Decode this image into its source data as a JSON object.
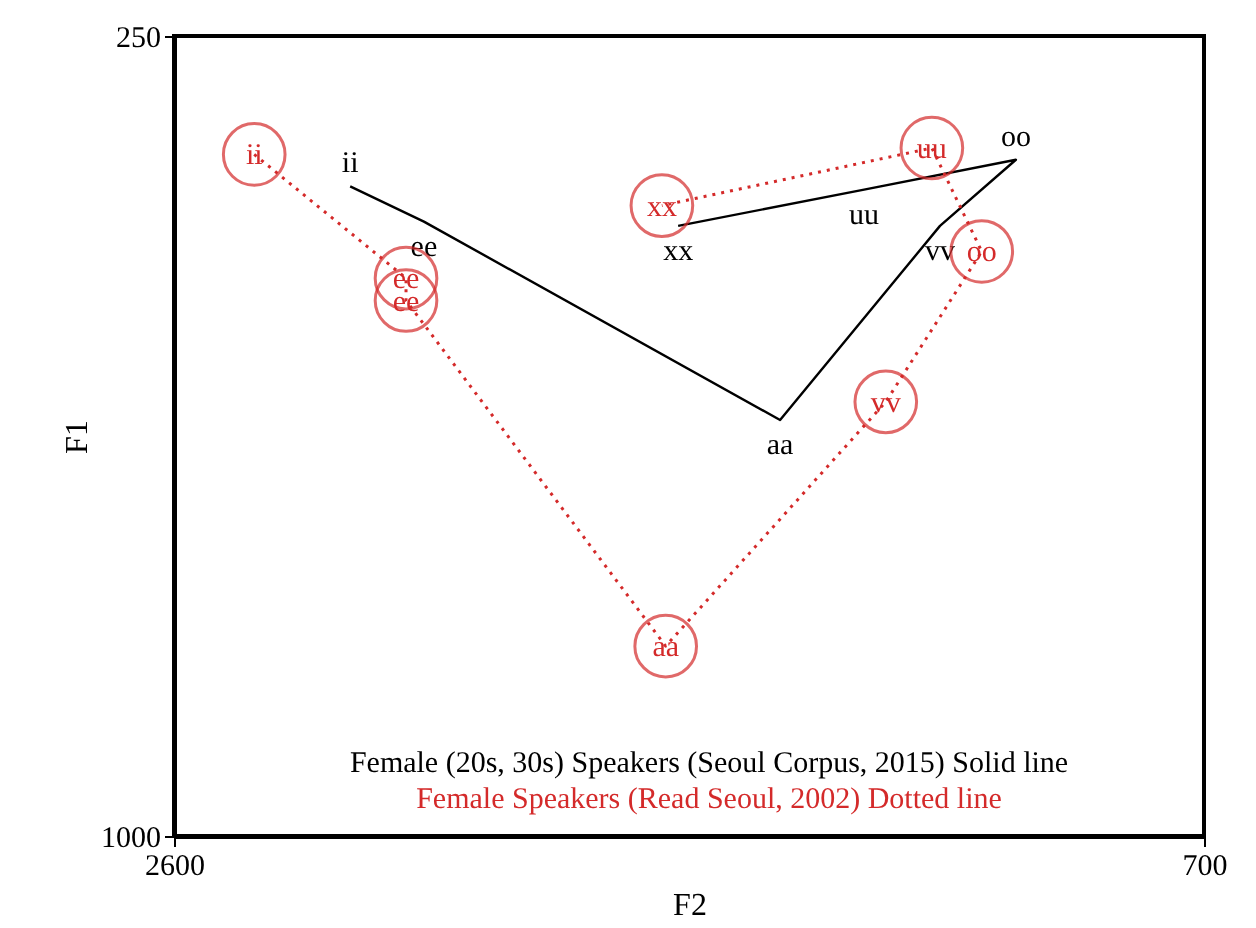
{
  "chart_data": {
    "type": "line",
    "xlabel": "F2",
    "ylabel": "F1",
    "xlim": [
      2600,
      700
    ],
    "ylim": [
      1000,
      250
    ],
    "xticks": [
      2600,
      700
    ],
    "yticks": [
      1000,
      250
    ],
    "grid": false,
    "annotations": [
      "Female (20s, 30s) Speakers (Seoul Corpus, 2015) Solid line",
      "Female Speakers (Read Seoul, 2002) Dotted line"
    ],
    "series": [
      {
        "color": "#000000",
        "line_style": "solid",
        "marker": "none",
        "x": [
          2275,
          2139,
          1482,
          1187,
          1047,
          1327,
          1670
        ],
        "values": [
          391,
          424,
          610,
          428,
          366,
          394,
          428
        ],
        "value_labels": [
          "ii",
          "ee",
          "aa",
          "vv",
          "oo",
          "uu",
          "xx"
        ]
      },
      {
        "color": "#d42a2a",
        "line_style": "dotted",
        "marker": "circle",
        "x": [
          2452,
          2172,
          2172,
          1693,
          1287,
          1110,
          1202,
          1700
        ],
        "values": [
          361,
          477,
          498,
          822,
          593,
          452,
          355,
          409
        ],
        "value_labels": [
          "ii",
          "ee",
          "ee",
          "aa",
          "vv",
          "oo",
          "uu",
          "xx"
        ]
      }
    ]
  }
}
